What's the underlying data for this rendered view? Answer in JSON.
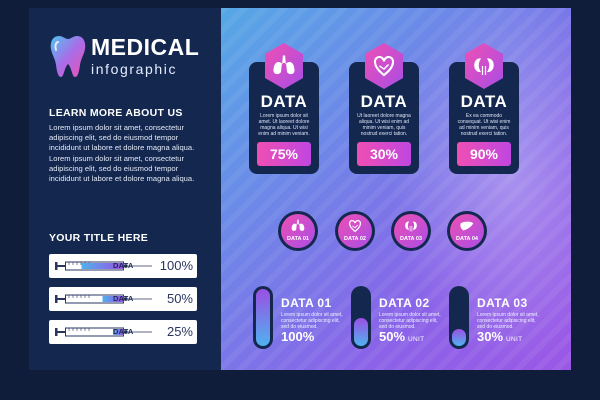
{
  "brand": {
    "main": "MEDICAL",
    "sub": "infographic"
  },
  "left": {
    "learn_title": "LEARN MORE ABOUT US",
    "lorem": "Lorem ipsum dolor sit amet, consectetur adipiscing elit, sed do eiusmod tempor incididunt ut labore et dolore magna aliqua. Lorem ipsum dolor sit amet, consectetur adipiscing elit, sed do eiusmod tempor incididunt ut labore et dolore magna aliqua.",
    "your_title": "YOUR TITLE HERE",
    "syringes": [
      {
        "label": "DATA",
        "pct": "100%",
        "level": 1.0
      },
      {
        "label": "DATA",
        "pct": "50%",
        "level": 0.5
      },
      {
        "label": "DATA",
        "pct": "25%",
        "level": 0.25
      }
    ]
  },
  "cards": [
    {
      "title": "DATA",
      "icon": "lungs-icon",
      "text": "Lorem ipsum dolor sit amet. Ut laoreet dolore magna aliqua. Ut wisi enim ad minim veniam.",
      "value": "75%"
    },
    {
      "title": "DATA",
      "icon": "heart-icon",
      "text": "Ut laoreet dolore magna aliqua. Ut wisi enim ad minim veniam, quis nostrud exerci tation.",
      "value": "30%"
    },
    {
      "title": "DATA",
      "icon": "kidneys-icon",
      "text": "Ex ea commodo consequat. Ut wisi enim ad minim veniam, quis nostrud exerci tation.",
      "value": "90%"
    }
  ],
  "circles": [
    {
      "label": "DATA 01",
      "icon": "lungs-icon"
    },
    {
      "label": "DATA 02",
      "icon": "heart-icon"
    },
    {
      "label": "DATA 03",
      "icon": "kidneys-icon"
    },
    {
      "label": "DATA 04",
      "icon": "liver-icon"
    }
  ],
  "tubes": [
    {
      "title": "DATA 01",
      "text": "Lorem ipsum dolor sit amet, consectetur adipiscing elit, sed do eiusmod.",
      "value": "100%",
      "unit": "",
      "level": 1.0
    },
    {
      "title": "DATA 02",
      "text": "Lorem ipsum dolor sit amet, consectetur adipiscing elit, sed do eiusmod.",
      "value": "50%",
      "unit": "UNIT",
      "level": 0.5
    },
    {
      "title": "DATA 03",
      "text": "Lorem ipsum dolor sit amet, consectetur adipiscing elit, sed do eiusmod.",
      "value": "30%",
      "unit": "UNIT",
      "level": 0.3
    }
  ],
  "colors": {
    "navy": "#14284f",
    "pink": "#ef4fb3",
    "purple": "#a84ee6",
    "blue": "#4fb2ef"
  }
}
